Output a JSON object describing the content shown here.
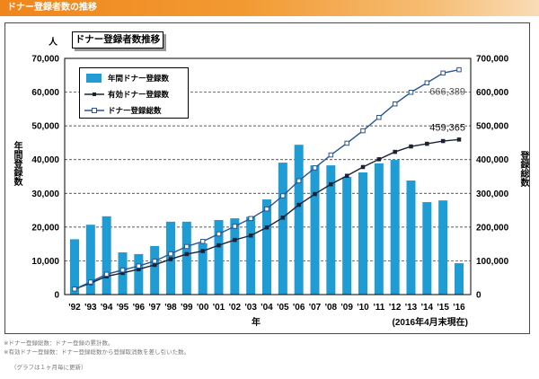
{
  "header": {
    "title": "ドナー登録者数の推移"
  },
  "chart_data": {
    "type": "bar",
    "title": "ドナー登録者数推移",
    "categories": [
      "'92",
      "'93",
      "'94",
      "'95",
      "'96",
      "'97",
      "'98",
      "'99",
      "'00",
      "'01",
      "'02",
      "'03",
      "'04",
      "'05",
      "'06",
      "'07",
      "'08",
      "'09",
      "'10",
      "'11",
      "'12",
      "'13",
      "'14",
      "'15",
      "'16"
    ],
    "xlabel": "年",
    "x_note": "(2016年4月末現在)",
    "y_left": {
      "label": "年間登録数",
      "unit": "人",
      "min": 0,
      "max": 70000,
      "tick_labels": [
        "0",
        "10,000",
        "20,000",
        "30,000",
        "40,000",
        "50,000",
        "60,000",
        "70,000"
      ]
    },
    "y_right": {
      "label": "登録総数",
      "min": 0,
      "max": 700000,
      "tick_labels": [
        "0",
        "100,000",
        "200,000",
        "300,000",
        "400,000",
        "500,000",
        "600,000",
        "700,000"
      ]
    },
    "grid": true,
    "legend_position": "top-left",
    "series": [
      {
        "name": "年間ドナー登録数",
        "type": "bar",
        "axis": "left",
        "color": "#1f9cd3",
        "values": [
          16400,
          20700,
          23200,
          12500,
          12000,
          14400,
          21600,
          21600,
          15200,
          22100,
          22600,
          23100,
          28200,
          39100,
          44400,
          38300,
          38300,
          34900,
          36200,
          38900,
          39900,
          33800,
          27400,
          27900,
          9300
        ]
      },
      {
        "name": "有効ドナー登録数",
        "type": "line",
        "axis": "right",
        "marker": "filled-square",
        "color": "#1c2236",
        "values": [
          16000,
          34000,
          54000,
          64000,
          75000,
          88000,
          105000,
          120000,
          129000,
          146000,
          162000,
          175000,
          199000,
          228000,
          266000,
          298000,
          327000,
          352000,
          378000,
          401000,
          423000,
          439000,
          447000,
          455000,
          459365
        ]
      },
      {
        "name": "ドナー登録総数",
        "type": "line",
        "axis": "right",
        "marker": "hollow-square",
        "color": "#2a5590",
        "values": [
          16400,
          37100,
          60300,
          72800,
          84800,
          99200,
          120800,
          142400,
          157600,
          179700,
          202300,
          225400,
          253600,
          292700,
          337100,
          375400,
          413700,
          448600,
          485500,
          525000,
          565000,
          599500,
          627500,
          656500,
          666389
        ]
      }
    ],
    "annotations": [
      {
        "text": "666,389",
        "series": 2,
        "index": 24,
        "placement": "below",
        "color": "#555555"
      },
      {
        "text": "459,365",
        "series": 1,
        "index": 24,
        "placement": "above",
        "color": "#111111"
      }
    ]
  },
  "footnotes": [
    "※ドナー登録総数：ドナー登録の累計数。",
    "※有効ドナー登録数：ドナー登録総数から登録取消数を差し引いた数。",
    "（グラフは１ヶ月毎に更新）"
  ]
}
